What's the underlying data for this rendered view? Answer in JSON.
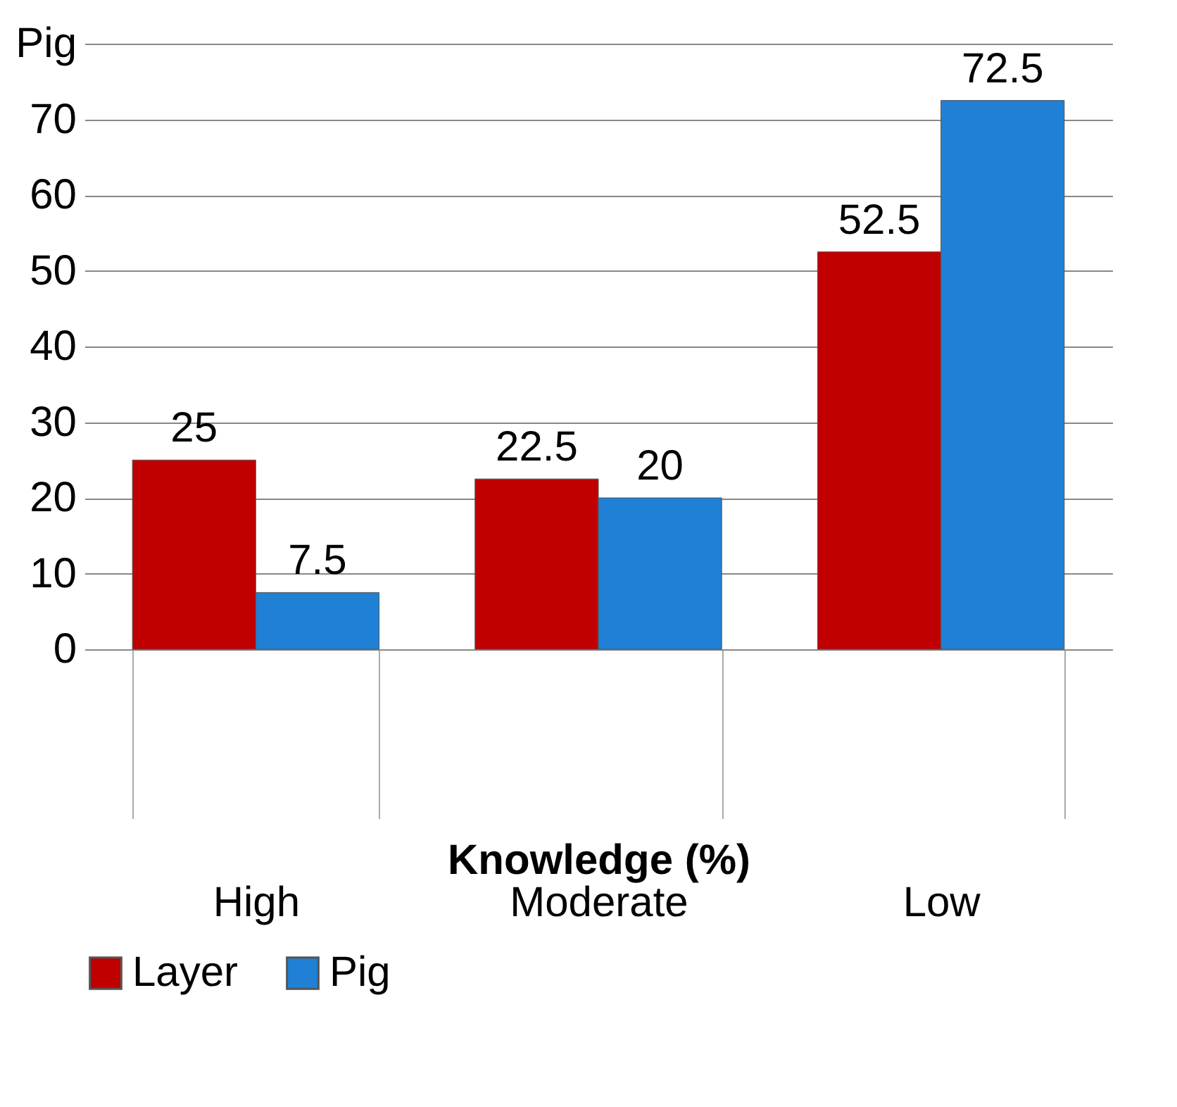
{
  "chart_data": {
    "type": "bar",
    "xlabel": "Knowledge  (%)",
    "categories": [
      "High",
      "Moderate",
      "Low"
    ],
    "series": [
      {
        "name": "Layer",
        "color": "#c00000",
        "values": [
          25,
          22.5,
          52.5
        ]
      },
      {
        "name": "Pig",
        "color": "#1f80d6",
        "values": [
          7.5,
          20,
          72.5
        ]
      }
    ],
    "ylim": [
      0,
      80
    ],
    "yticks": [
      0,
      10,
      20,
      30,
      40,
      50,
      60,
      70,
      {
        "value": 80,
        "label": "Pig"
      }
    ],
    "grid": "y",
    "legend": "bottom",
    "data_labels": true
  }
}
